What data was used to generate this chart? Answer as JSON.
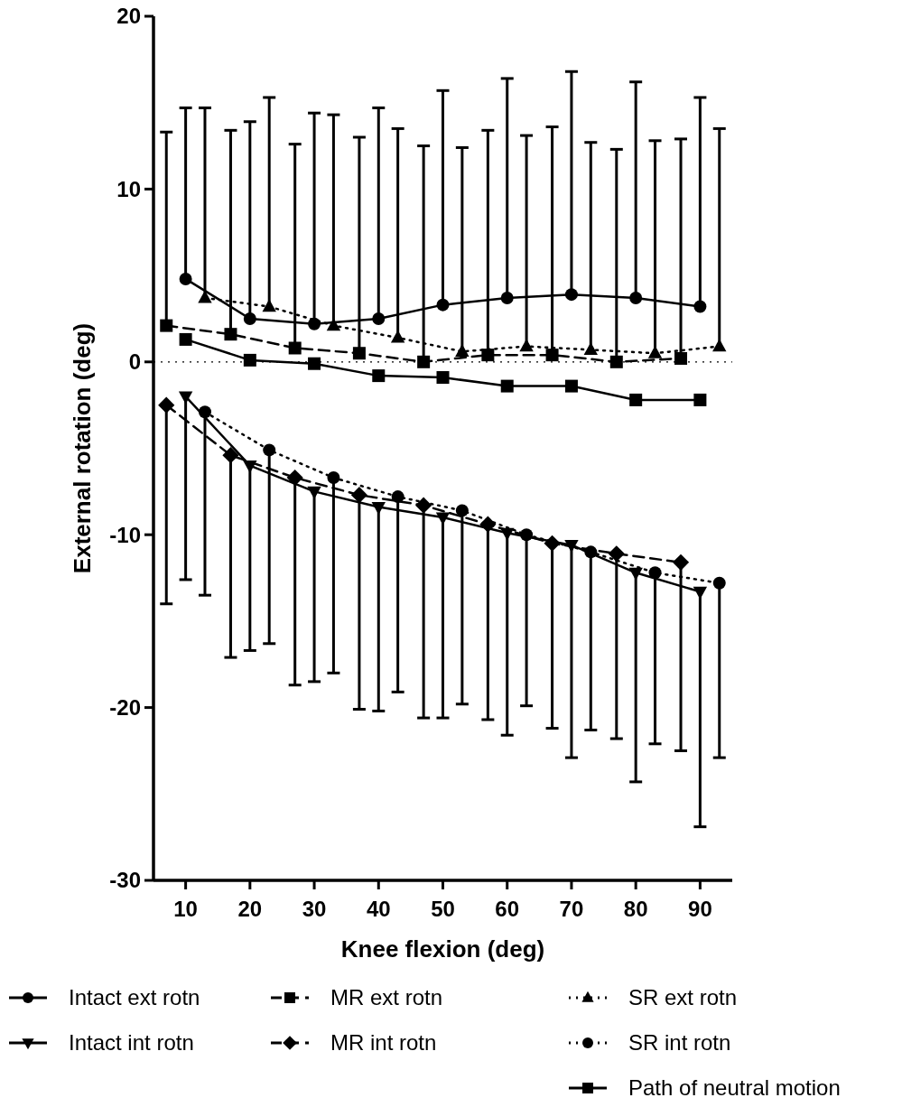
{
  "chart_data": {
    "type": "line",
    "xlabel": "Knee flexion (deg)",
    "ylabel": "External rotation (deg)",
    "xlim": [
      5,
      95
    ],
    "xticks": [
      10,
      20,
      30,
      40,
      50,
      60,
      70,
      80,
      90
    ],
    "ylim": [
      -30,
      20
    ],
    "yticks": [
      -30,
      -20,
      -10,
      0,
      10,
      20
    ],
    "grid": false,
    "legend": "bottom",
    "ref_lines": [
      {
        "axis": "y",
        "value": 0,
        "line_style": "dotted",
        "color": "#000000"
      }
    ],
    "series": [
      {
        "name": "Intact ext rotn",
        "color": "#000000",
        "marker": "circle",
        "line_style": "solid",
        "x": [
          10,
          20,
          30,
          40,
          50,
          60,
          70,
          80,
          90
        ],
        "values": [
          4.8,
          2.5,
          2.2,
          2.5,
          3.3,
          3.7,
          3.9,
          3.7,
          3.2
        ],
        "errors": [
          [
            4.8,
            14.7
          ],
          [
            2.5,
            13.9
          ],
          [
            2.2,
            14.4
          ],
          [
            2.5,
            14.7
          ],
          [
            3.3,
            15.7
          ],
          [
            3.7,
            16.4
          ],
          [
            3.9,
            16.8
          ],
          [
            3.7,
            16.2
          ],
          [
            3.2,
            15.3
          ]
        ]
      },
      {
        "name": "MR ext rotn",
        "color": "#000000",
        "marker": "square",
        "line_style": "dashed",
        "x": [
          7,
          17,
          27,
          37,
          47,
          57,
          67,
          77,
          87
        ],
        "values": [
          2.1,
          1.6,
          0.8,
          0.5,
          0,
          0.4,
          0.4,
          0,
          0.2
        ],
        "errors": [
          [
            2.1,
            13.3
          ],
          [
            1.6,
            13.4
          ],
          [
            0.8,
            12.6
          ],
          [
            0.5,
            13
          ],
          [
            0,
            12.5
          ],
          [
            0.4,
            13.4
          ],
          [
            0.4,
            13.6
          ],
          [
            0,
            12.3
          ],
          [
            0.2,
            12.9
          ]
        ]
      },
      {
        "name": "SR ext rotn",
        "color": "#000000",
        "marker": "triangle",
        "line_style": "dotted",
        "x": [
          13,
          23,
          33,
          43,
          53,
          63,
          73,
          83,
          93
        ],
        "values": [
          3.7,
          3.2,
          2.1,
          1.4,
          0.6,
          0.9,
          0.7,
          0.5,
          0.9
        ],
        "errors": [
          [
            3.7,
            14.7
          ],
          [
            3.2,
            15.3
          ],
          [
            2.1,
            14.3
          ],
          [
            1.4,
            13.5
          ],
          [
            0.6,
            12.4
          ],
          [
            0.9,
            13.1
          ],
          [
            0.7,
            12.7
          ],
          [
            0.5,
            12.8
          ],
          [
            0.9,
            13.5
          ]
        ]
      },
      {
        "name": "Intact int rotn",
        "color": "#000000",
        "marker": "triangle-down",
        "line_style": "solid",
        "x": [
          10,
          20,
          30,
          40,
          50,
          60,
          70,
          80,
          90
        ],
        "values": [
          -2,
          -6,
          -7.5,
          -8.4,
          -9,
          -9.9,
          -10.6,
          -12.2,
          -13.3
        ],
        "errors": [
          [
            -12.6,
            -2
          ],
          [
            -16.7,
            -6
          ],
          [
            -18.5,
            -7.5
          ],
          [
            -20.2,
            -8.4
          ],
          [
            -20.6,
            -9
          ],
          [
            -21.6,
            -9.9
          ],
          [
            -22.9,
            -10.6
          ],
          [
            -24.3,
            -12.2
          ],
          [
            -26.9,
            -13.3
          ]
        ]
      },
      {
        "name": "MR int rotn",
        "color": "#000000",
        "marker": "diamond",
        "line_style": "dashed",
        "x": [
          7,
          17,
          27,
          37,
          47,
          57,
          67,
          77,
          87
        ],
        "values": [
          -2.5,
          -5.4,
          -6.7,
          -7.7,
          -8.3,
          -9.4,
          -10.5,
          -11.1,
          -11.6
        ],
        "errors": [
          [
            -14,
            -2.5
          ],
          [
            -17.1,
            -5.4
          ],
          [
            -18.7,
            -6.7
          ],
          [
            -20.1,
            -7.7
          ],
          [
            -20.6,
            -8.3
          ],
          [
            -20.7,
            -9.4
          ],
          [
            -21.2,
            -10.5
          ],
          [
            -21.8,
            -11.1
          ],
          [
            -22.5,
            -11.6
          ]
        ]
      },
      {
        "name": "SR int rotn",
        "color": "#000000",
        "marker": "circle",
        "line_style": "dotted",
        "x": [
          13,
          23,
          33,
          43,
          53,
          63,
          73,
          83,
          93
        ],
        "values": [
          -2.9,
          -5.1,
          -6.7,
          -7.8,
          -8.6,
          -10,
          -11,
          -12.2,
          -12.8
        ],
        "errors": [
          [
            -13.5,
            -2.9
          ],
          [
            -16.3,
            -5.1
          ],
          [
            -18,
            -6.7
          ],
          [
            -19.1,
            -7.8
          ],
          [
            -19.8,
            -8.6
          ],
          [
            -19.9,
            -10
          ],
          [
            -21.3,
            -11
          ],
          [
            -22.1,
            -12.2
          ],
          [
            -22.9,
            -12.8
          ]
        ]
      },
      {
        "name": "Path of neutral motion",
        "color": "#000000",
        "marker": "square",
        "line_style": "solid",
        "x": [
          10,
          20,
          30,
          40,
          50,
          60,
          70,
          80,
          90
        ],
        "values": [
          1.3,
          0.1,
          -0.1,
          -0.8,
          -0.9,
          -1.4,
          -1.4,
          -2.2,
          -2.2
        ]
      }
    ]
  }
}
